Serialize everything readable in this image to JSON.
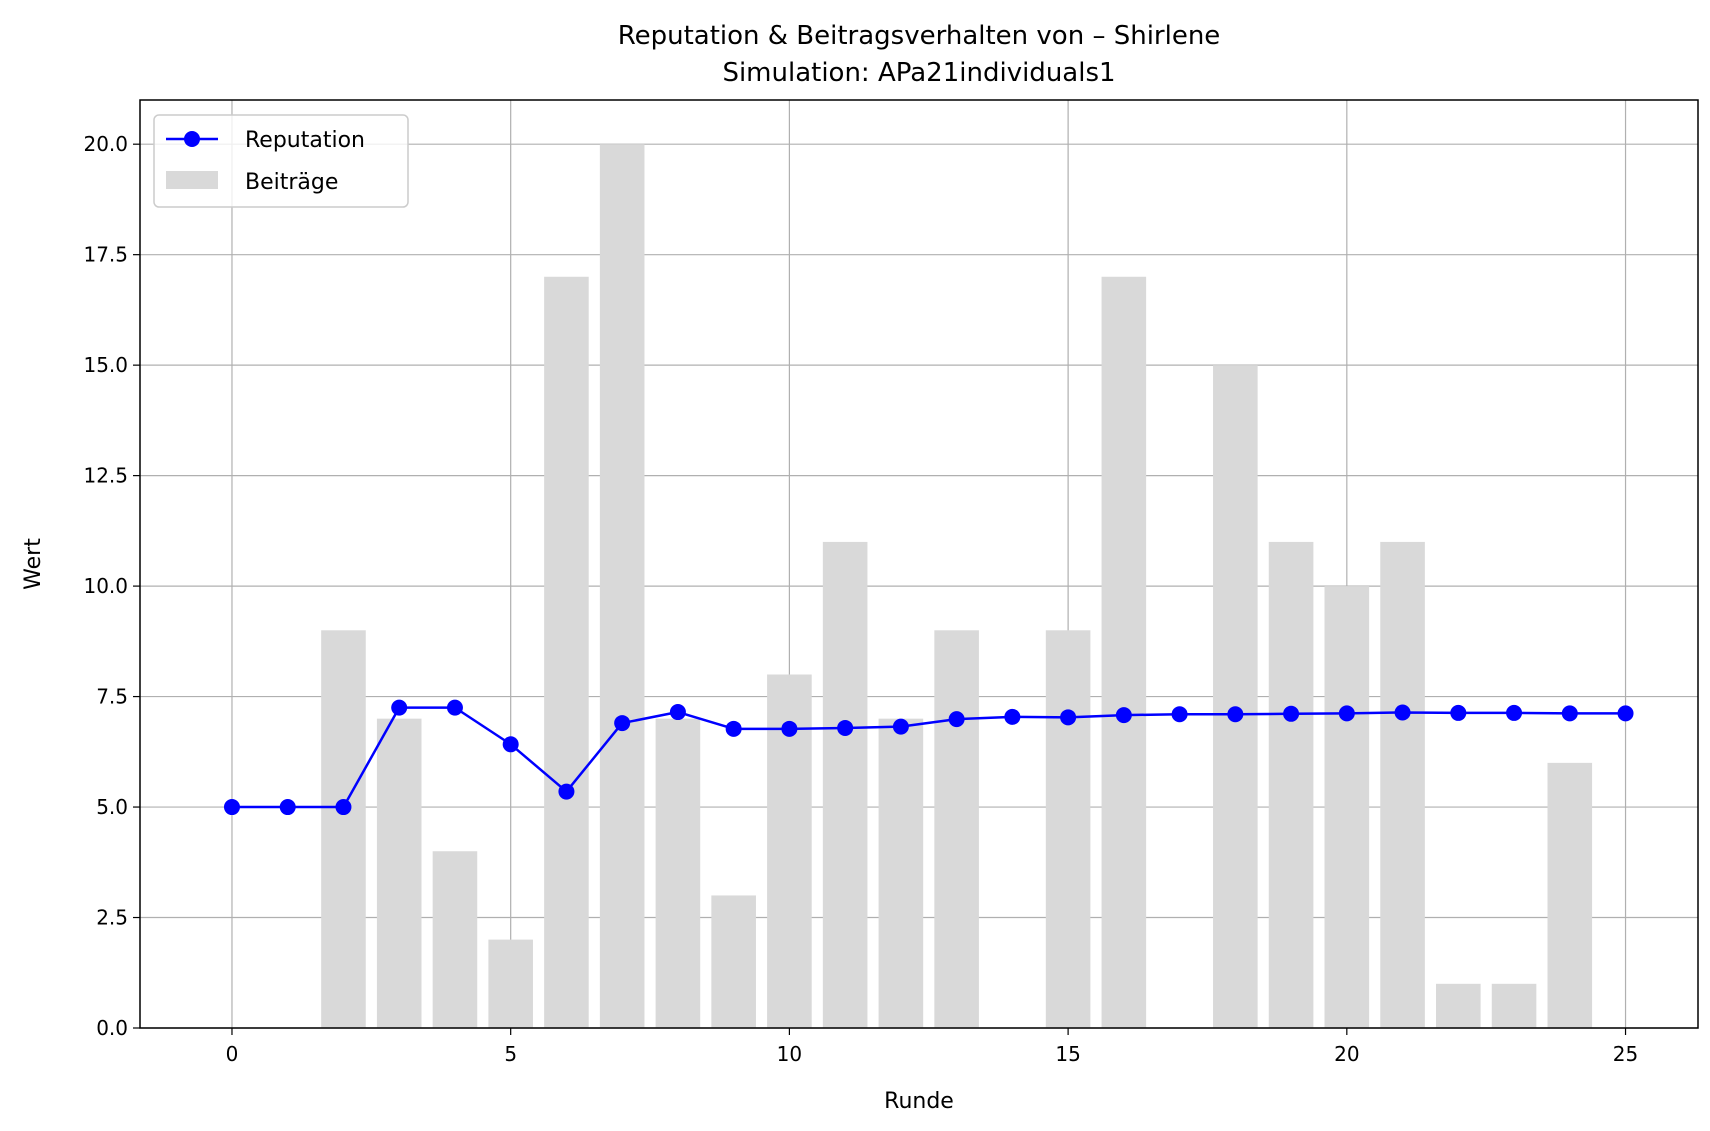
{
  "chart_data": {
    "type": "bar",
    "title": "Reputation & Beitragsverhalten von – Shirlene",
    "subtitle": "Simulation: APa21individuals1",
    "xlabel": "Runde",
    "ylabel": "Wert",
    "xlim": [
      -1.65,
      26.3
    ],
    "ylim": [
      0,
      21
    ],
    "xticks": [
      "0",
      "5",
      "10",
      "15",
      "20",
      "25"
    ],
    "yticks": [
      "0.0",
      "2.5",
      "5.0",
      "7.5",
      "10.0",
      "12.5",
      "15.0",
      "17.5",
      "20.0"
    ],
    "grid": true,
    "legend_position": "top-left",
    "x": [
      0,
      1,
      2,
      3,
      4,
      5,
      6,
      7,
      8,
      9,
      10,
      11,
      12,
      13,
      14,
      15,
      16,
      17,
      18,
      19,
      20,
      21,
      22,
      23,
      24,
      25
    ],
    "series": [
      {
        "name": "Reputation",
        "kind": "line",
        "color": "#0000ff",
        "values": [
          5.0,
          5.0,
          5.0,
          7.25,
          7.25,
          6.42,
          5.35,
          6.9,
          7.15,
          6.77,
          6.77,
          6.79,
          6.82,
          6.99,
          7.04,
          7.03,
          7.08,
          7.1,
          7.1,
          7.11,
          7.12,
          7.14,
          7.13,
          7.13,
          7.12,
          7.12
        ]
      },
      {
        "name": "Beiträge",
        "kind": "bar",
        "color": "#d9d9d9",
        "values": [
          0,
          0,
          9,
          7,
          4,
          2,
          17,
          20,
          7,
          3,
          8,
          11,
          7,
          9,
          0,
          9,
          17,
          0,
          15,
          11,
          10,
          11,
          1,
          1,
          6,
          0
        ]
      }
    ]
  }
}
